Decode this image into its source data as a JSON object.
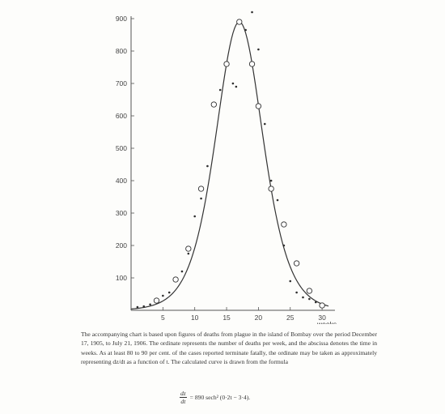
{
  "chart_data": {
    "type": "scatter",
    "title": "",
    "xlabel": "weeks",
    "ylabel": "",
    "xlim": [
      0,
      31
    ],
    "ylim": [
      0,
      900
    ],
    "grid": false,
    "legend": "none",
    "x_ticks": [
      5,
      10,
      15,
      20,
      25,
      30
    ],
    "y_ticks": [
      100,
      200,
      300,
      400,
      500,
      600,
      700,
      800,
      900
    ],
    "x_tick_labels": [
      "5",
      "10",
      "15",
      "20",
      "25",
      "30"
    ],
    "y_tick_labels": [
      "100",
      "200",
      "300",
      "400",
      "500",
      "600",
      "700",
      "800",
      "900"
    ],
    "series": [
      {
        "marker": "open-circle",
        "x": [
          4,
          7,
          9,
          11,
          13,
          15,
          17,
          19,
          20,
          22,
          24,
          26,
          28,
          30
        ],
        "y": [
          30,
          95,
          190,
          375,
          635,
          760,
          890,
          760,
          630,
          375,
          265,
          145,
          60,
          15
        ]
      },
      {
        "marker": "dot",
        "x": [
          1,
          2,
          3,
          5,
          6,
          8,
          9,
          10,
          11,
          12,
          14,
          16,
          16.5,
          18,
          19,
          20,
          21,
          22,
          23,
          24,
          25,
          26,
          27,
          28,
          29
        ],
        "y": [
          10,
          12,
          18,
          45,
          55,
          120,
          175,
          290,
          345,
          445,
          680,
          700,
          690,
          865,
          920,
          805,
          575,
          400,
          340,
          200,
          90,
          55,
          40,
          35,
          25
        ]
      },
      {
        "type": "line",
        "formula": "890 sech^2(0.2t - 3.4)"
      }
    ],
    "colors": {
      "line": "#333333",
      "marker": "#2e2e2e",
      "axis": "#555555"
    }
  },
  "caption": "The accompanying chart is based upon figures of deaths from plague in the island of Bombay over the period December 17, 1905, to July 21, 1906. The ordinate represents the number of deaths per week, and the abscissa denotes the time in weeks. As at least 80 to 90 per cent. of the cases reported terminate fatally, the ordinate may be taken as approximately representing dz/dt as a function of t. The calculated curve is drawn from the formula",
  "formula": {
    "numerator": "dz",
    "denominator": "dt",
    "rhs": "= 890 sech² (0·2t − 3·4)."
  }
}
